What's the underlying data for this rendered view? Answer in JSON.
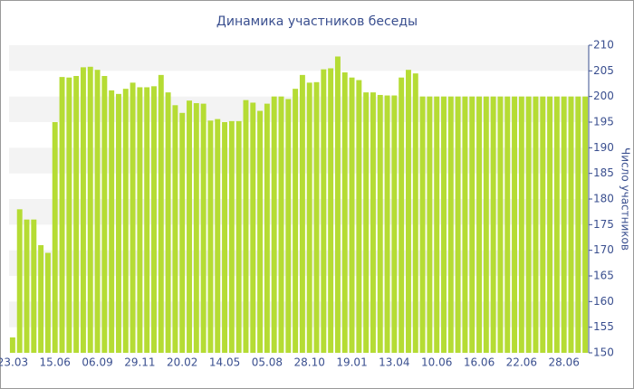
{
  "chart_data": {
    "type": "bar",
    "title": "Динамика участников беседы",
    "y_label": "Число участников",
    "color": "#b5dc34",
    "band_color": "#f3f3f3",
    "categories": [
      "23.03",
      null,
      null,
      null,
      null,
      null,
      "15.06",
      null,
      null,
      null,
      null,
      null,
      "06.09",
      null,
      null,
      null,
      null,
      null,
      "29.11",
      null,
      null,
      null,
      null,
      null,
      "20.02",
      null,
      null,
      null,
      null,
      null,
      "14.05",
      null,
      null,
      null,
      null,
      null,
      "05.08",
      null,
      null,
      null,
      null,
      null,
      "28.10",
      null,
      null,
      null,
      null,
      null,
      "19.01",
      null,
      null,
      null,
      null,
      null,
      "13.04",
      null,
      null,
      null,
      null,
      null,
      "10.06",
      null,
      null,
      null,
      null,
      null,
      "16.06",
      null,
      null,
      null,
      null,
      null,
      "22.06",
      null,
      null,
      null,
      null,
      null,
      "28.06",
      null,
      null,
      null
    ],
    "values": [
      153,
      178,
      176,
      176,
      171,
      169.5,
      195,
      203.8,
      203.7,
      204,
      205.7,
      205.8,
      205.2,
      204,
      201.2,
      200.5,
      201.5,
      202.7,
      201.8,
      201.8,
      202,
      204.2,
      200.8,
      198.3,
      196.8,
      199.2,
      198.7,
      198.6,
      195.3,
      195.6,
      195,
      195.2,
      195.2,
      199.3,
      198.8,
      197.2,
      198.6,
      200,
      200,
      199.5,
      201.5,
      204.2,
      202.7,
      202.8,
      205.3,
      205.5,
      207.8,
      204.7,
      203.7,
      203.2,
      200.8,
      200.8,
      200.3,
      200.2,
      200.2,
      203.7,
      205.2,
      204.5,
      200,
      200,
      200,
      200,
      200,
      200,
      200,
      200,
      200,
      200,
      200,
      200,
      200,
      200,
      200,
      200,
      200,
      200,
      200,
      200,
      200,
      200,
      200,
      200
    ],
    "ylim": [
      150,
      210
    ],
    "yticks": [
      150,
      155,
      160,
      165,
      170,
      175,
      180,
      185,
      190,
      195,
      200,
      205,
      210
    ]
  }
}
